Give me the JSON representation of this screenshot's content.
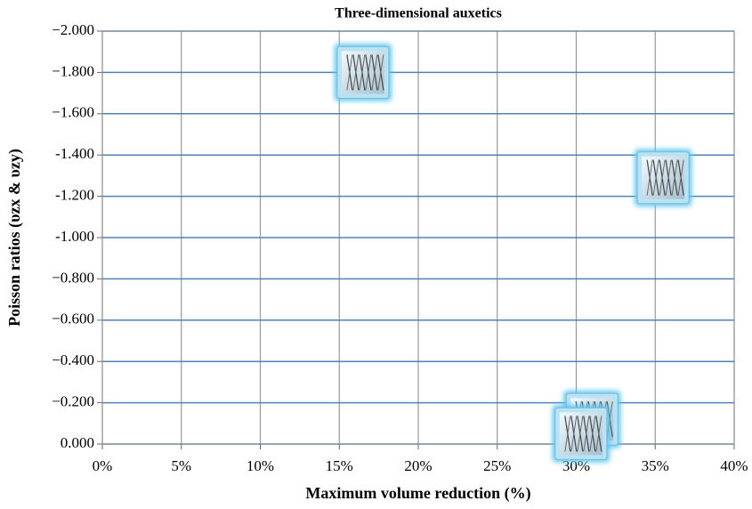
{
  "chart_data": {
    "type": "scatter",
    "title": "Three-dimensional auxetics",
    "x_label": "Maximum volume reduction (%)",
    "y_label": "Poisson ratios (υzx & υzy)",
    "x": [
      16.5,
      35.5,
      31,
      30.3
    ],
    "values": [
      -1.8,
      -1.29,
      -0.12,
      -0.05
    ],
    "color": "#b9e3f5",
    "xlim": [
      0,
      40
    ],
    "xticks": [
      {
        "value": 0,
        "label": "0%"
      },
      {
        "value": 5,
        "label": "5%"
      },
      {
        "value": 10,
        "label": "10%"
      },
      {
        "value": 15,
        "label": "15%"
      },
      {
        "value": 20,
        "label": "20%"
      },
      {
        "value": 25,
        "label": "25%"
      },
      {
        "value": 30,
        "label": "30%"
      },
      {
        "value": 35,
        "label": "35%"
      },
      {
        "value": 40,
        "label": "40%"
      }
    ],
    "ylim": [
      0,
      -2
    ],
    "yticks": [
      {
        "value": -2,
        "label": "−2.000"
      },
      {
        "value": -1.8,
        "label": "−1.800"
      },
      {
        "value": -1.6,
        "label": "−1.600"
      },
      {
        "value": -1.4,
        "label": "-1.400"
      },
      {
        "value": -1.2,
        "label": "-1.200"
      },
      {
        "value": -1,
        "label": "-1.000"
      },
      {
        "value": -0.8,
        "label": "−0.800"
      },
      {
        "value": -0.6,
        "label": "−0.600"
      },
      {
        "value": -0.4,
        "label": "−0.400"
      },
      {
        "value": -0.2,
        "label": "−0.200"
      },
      {
        "value": 0,
        "label": "0.000"
      }
    ],
    "grid": true
  }
}
